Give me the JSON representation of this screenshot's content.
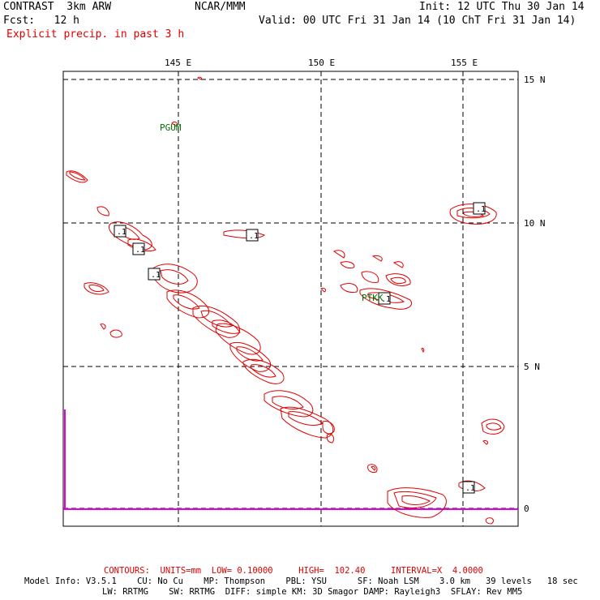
{
  "header": {
    "model": "CONTRAST  3km ARW",
    "org": "NCAR/MMM",
    "init": "Init: 12 UTC Thu 30 Jan 14",
    "fcst": "Fcst:   12 h",
    "valid": "Valid: 00 UTC Fri 31 Jan 14 (10 ChT Fri 31 Jan 14)",
    "field": "Explicit precip. in past 3 h"
  },
  "axes": {
    "lon_labels": [
      "145 E",
      "150 E",
      "155 E"
    ],
    "lat_labels": [
      "15 N",
      "10 N",
      "5 N",
      "0"
    ]
  },
  "stations": [
    {
      "name": "PGUM"
    },
    {
      "name": "PTKK"
    }
  ],
  "contour_label": ".1",
  "footer": {
    "contours": "CONTOURS:  UNITS=mm  LOW= 0.10000     HIGH=  102.40     INTERVAL=X  4.0000",
    "model_info_1": "Model Info: V3.5.1    CU: No Cu    MP: Thompson    PBL: YSU      SF: Noah LSM    3.0 km   39 levels   18 sec",
    "model_info_2": "LW: RRTMG    SW: RRTMG  DIFF: simple KM: 3D Smagor DAMP: Rayleigh3  SFLAY: Rev MM5"
  },
  "colors": {
    "precip": "#e00000",
    "station": "#007000",
    "coastline": "#e000e0",
    "header_field": "#e00000"
  }
}
